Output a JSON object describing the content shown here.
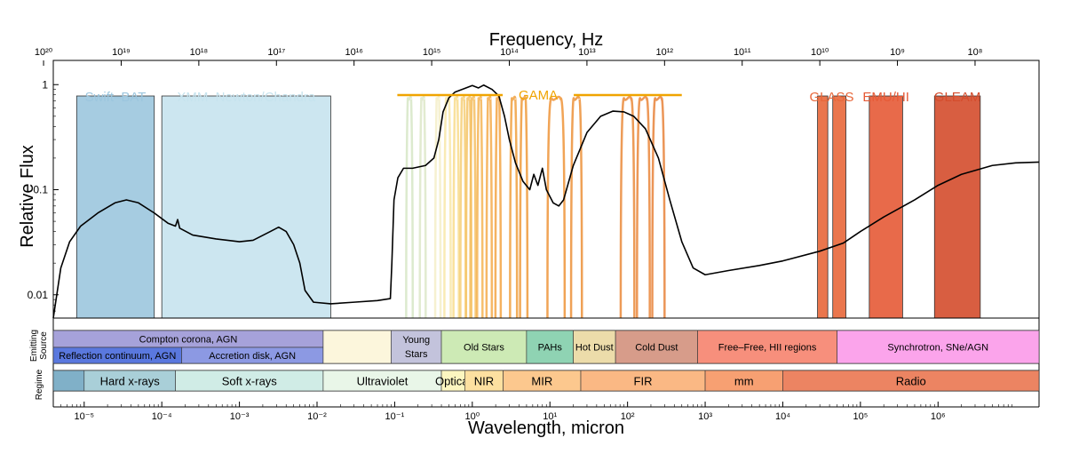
{
  "chart_data": {
    "type": "line",
    "title": "",
    "x_top_label": "Frequency, Hz",
    "x_bottom_label": "Wavelength, micron",
    "ylabel": "Relative Flux",
    "xscale": "log",
    "yscale": "log",
    "xlim_micron": [
      4e-06,
      20000000.0
    ],
    "ylim": [
      0.006,
      1.7
    ],
    "freq_ticks": [
      "10²⁰",
      "10¹⁹",
      "10¹⁸",
      "10¹⁷",
      "10¹⁶",
      "10¹⁵",
      "10¹⁴",
      "10¹³",
      "10¹²",
      "10¹¹",
      "10¹⁰",
      "10⁹",
      "10⁸"
    ],
    "wavelength_ticks": [
      "10⁻⁵",
      "10⁻⁴",
      "10⁻³",
      "10⁻²",
      "10⁻¹",
      "10⁰",
      "10¹",
      "10²",
      "10³",
      "10⁴",
      "10⁵",
      "10⁶"
    ],
    "y_ticks": [
      "1",
      "0.1",
      "0.01"
    ],
    "surveys": [
      {
        "name": "Swift–BAT",
        "color": "#9cc6de",
        "ranges_micron": [
          [
            8e-06,
            8e-05
          ]
        ]
      },
      {
        "name": "XMM–Newton/Chandra",
        "color": "#c6e3ee",
        "ranges_micron": [
          [
            0.0001,
            0.015
          ]
        ]
      },
      {
        "name": "GAMA",
        "color": "#f0a400",
        "range_micron": [
          0.1,
          500
        ]
      },
      {
        "name": "GLASS",
        "color": "#e8673a",
        "ranges_micron": [
          [
            28000,
            38000
          ],
          [
            44000,
            65000
          ]
        ]
      },
      {
        "name": "EMU/HI",
        "color": "#e65a36",
        "ranges_micron": [
          [
            130000,
            350000
          ]
        ]
      },
      {
        "name": "GLEAM",
        "color": "#d44c2c",
        "ranges_micron": [
          [
            900000,
            3500000
          ]
        ]
      }
    ],
    "gama_filters_micron": [
      {
        "center": 0.155,
        "width": 0.03,
        "color": "#d6e6c6"
      },
      {
        "center": 0.23,
        "width": 0.04,
        "color": "#dde8c8"
      },
      {
        "center": 0.36,
        "width": 0.05,
        "color": "#f4eec8"
      },
      {
        "center": 0.48,
        "width": 0.09,
        "color": "#f8e8a8"
      },
      {
        "center": 0.62,
        "width": 0.1,
        "color": "#f8dc8c"
      },
      {
        "center": 0.76,
        "width": 0.11,
        "color": "#f6cf78"
      },
      {
        "center": 0.9,
        "width": 0.1,
        "color": "#f5c468"
      },
      {
        "center": 1.02,
        "width": 0.1,
        "color": "#f4be60"
      },
      {
        "center": 1.25,
        "width": 0.16,
        "color": "#f4b454"
      },
      {
        "center": 1.65,
        "width": 0.25,
        "color": "#f4ac4c"
      },
      {
        "center": 2.15,
        "width": 0.3,
        "color": "#f3a444"
      },
      {
        "center": 3.4,
        "width": 0.7,
        "color": "#f0a03e"
      },
      {
        "center": 4.6,
        "width": 1.0,
        "color": "#ee9a3a"
      },
      {
        "center": 12,
        "width": 6,
        "color": "#ee9438"
      },
      {
        "center": 22,
        "width": 7,
        "color": "#ec9038"
      },
      {
        "center": 100,
        "width": 40,
        "color": "#ea8a3a"
      },
      {
        "center": 160,
        "width": 60,
        "color": "#ea863a"
      },
      {
        "center": 250,
        "width": 90,
        "color": "#e8823a"
      }
    ],
    "sed": {
      "name": "SED",
      "points": [
        [
          4e-06,
          0.006
        ],
        [
          5e-06,
          0.018
        ],
        [
          6.5e-06,
          0.032
        ],
        [
          9e-06,
          0.045
        ],
        [
          1.5e-05,
          0.06
        ],
        [
          2.5e-05,
          0.075
        ],
        [
          3.5e-05,
          0.08
        ],
        [
          5e-05,
          0.075
        ],
        [
          8e-05,
          0.06
        ],
        [
          0.00012,
          0.048
        ],
        [
          0.00015,
          0.045
        ],
        [
          0.00016,
          0.052
        ],
        [
          0.00017,
          0.043
        ],
        [
          0.00025,
          0.037
        ],
        [
          0.0005,
          0.034
        ],
        [
          0.001,
          0.032
        ],
        [
          0.0015,
          0.033
        ],
        [
          0.0025,
          0.04
        ],
        [
          0.0032,
          0.044
        ],
        [
          0.004,
          0.04
        ],
        [
          0.005,
          0.03
        ],
        [
          0.006,
          0.02
        ],
        [
          0.007,
          0.011
        ],
        [
          0.009,
          0.0085
        ],
        [
          0.015,
          0.0082
        ],
        [
          0.03,
          0.0085
        ],
        [
          0.06,
          0.0088
        ],
        [
          0.088,
          0.0092
        ],
        [
          0.092,
          0.02
        ],
        [
          0.098,
          0.08
        ],
        [
          0.11,
          0.13
        ],
        [
          0.13,
          0.16
        ],
        [
          0.17,
          0.16
        ],
        [
          0.25,
          0.17
        ],
        [
          0.32,
          0.2
        ],
        [
          0.37,
          0.3
        ],
        [
          0.42,
          0.55
        ],
        [
          0.5,
          0.75
        ],
        [
          0.6,
          0.85
        ],
        [
          0.8,
          0.92
        ],
        [
          1.0,
          0.98
        ],
        [
          1.2,
          0.93
        ],
        [
          1.4,
          0.99
        ],
        [
          1.8,
          0.9
        ],
        [
          2.2,
          0.78
        ],
        [
          2.6,
          0.5
        ],
        [
          3.0,
          0.3
        ],
        [
          3.6,
          0.18
        ],
        [
          4.5,
          0.12
        ],
        [
          5.5,
          0.1
        ],
        [
          6.2,
          0.14
        ],
        [
          7.0,
          0.11
        ],
        [
          8.0,
          0.16
        ],
        [
          9.0,
          0.1
        ],
        [
          11,
          0.075
        ],
        [
          13,
          0.07
        ],
        [
          15,
          0.08
        ],
        [
          20,
          0.17
        ],
        [
          30,
          0.35
        ],
        [
          45,
          0.5
        ],
        [
          65,
          0.56
        ],
        [
          90,
          0.55
        ],
        [
          120,
          0.5
        ],
        [
          170,
          0.38
        ],
        [
          250,
          0.2
        ],
        [
          350,
          0.08
        ],
        [
          500,
          0.032
        ],
        [
          700,
          0.018
        ],
        [
          1000,
          0.0155
        ],
        [
          2000,
          0.017
        ],
        [
          5000,
          0.019
        ],
        [
          10000,
          0.021
        ],
        [
          30000,
          0.026
        ],
        [
          60000,
          0.031
        ],
        [
          100000,
          0.04
        ],
        [
          200000,
          0.055
        ],
        [
          500000,
          0.08
        ],
        [
          1000000,
          0.11
        ],
        [
          2000000,
          0.14
        ],
        [
          5000000,
          0.17
        ],
        [
          10000000,
          0.18
        ],
        [
          20000000,
          0.183
        ]
      ]
    }
  },
  "rows": {
    "emitting_label": "Emitting Source",
    "emitting_label_line1": "Emitting",
    "emitting_label_line2": "Source",
    "regime_label": "Regime",
    "emitting_sources": [
      {
        "label": "Compton corona, AGN",
        "from": 4e-06,
        "to": 0.012,
        "color": "#a6a2da",
        "level": "top"
      },
      {
        "label": "Reflection continuum, AGN",
        "from": 4e-06,
        "to": 0.00018,
        "color": "#5a78de",
        "level": "bottom"
      },
      {
        "label": "Accretion disk, AGN",
        "from": 0.00018,
        "to": 0.012,
        "color": "#8c99e3",
        "level": "bottom"
      },
      {
        "label": "",
        "from": 0.012,
        "to": 0.09,
        "color": "#fcf6dc",
        "level": "full"
      },
      {
        "label": "Young Stars",
        "from": 0.09,
        "to": 0.4,
        "color": "#c3c3dc",
        "level": "full"
      },
      {
        "label": "Old Stars",
        "from": 0.4,
        "to": 5,
        "color": "#cdeab5",
        "level": "full"
      },
      {
        "label": "PAHs",
        "from": 5,
        "to": 20,
        "color": "#8fd3b3",
        "level": "full"
      },
      {
        "label": "Hot Dust",
        "from": 20,
        "to": 70,
        "color": "#ecdcaa",
        "level": "full"
      },
      {
        "label": "Cold Dust",
        "from": 70,
        "to": 800,
        "color": "#d79c8a",
        "level": "full"
      },
      {
        "label": "Free–Free, HII regions",
        "from": 800,
        "to": 50000,
        "color": "#f78f7c",
        "level": "full"
      },
      {
        "label": "Synchrotron, SNe/AGN",
        "from": 50000,
        "to": 20000000,
        "color": "#fba4eb",
        "level": "full"
      }
    ],
    "regimes": [
      {
        "label": "",
        "from": 4e-06,
        "to": 1e-05,
        "color": "#80b0c8"
      },
      {
        "label": "Hard x-rays",
        "from": 1e-05,
        "to": 0.00015,
        "color": "#a9cfd8"
      },
      {
        "label": "Soft x-rays",
        "from": 0.00015,
        "to": 0.012,
        "color": "#d0ece6"
      },
      {
        "label": "Ultraviolet",
        "from": 0.012,
        "to": 0.4,
        "color": "#e9f6e8"
      },
      {
        "label": "Optical",
        "from": 0.4,
        "to": 0.8,
        "color": "#fcf6c0"
      },
      {
        "label": "NIR",
        "from": 0.8,
        "to": 2.5,
        "color": "#fde0a0"
      },
      {
        "label": "MIR",
        "from": 2.5,
        "to": 25,
        "color": "#fcc88e"
      },
      {
        "label": "FIR",
        "from": 25,
        "to": 1000,
        "color": "#fab884"
      },
      {
        "label": "mm",
        "from": 1000,
        "to": 10000,
        "color": "#f7a072"
      },
      {
        "label": "Radio",
        "from": 10000,
        "to": 20000000,
        "color": "#ec8462"
      }
    ]
  },
  "colors": {
    "axis": "#000000",
    "curve": "#000000",
    "gama_bar": "#f0a400"
  }
}
